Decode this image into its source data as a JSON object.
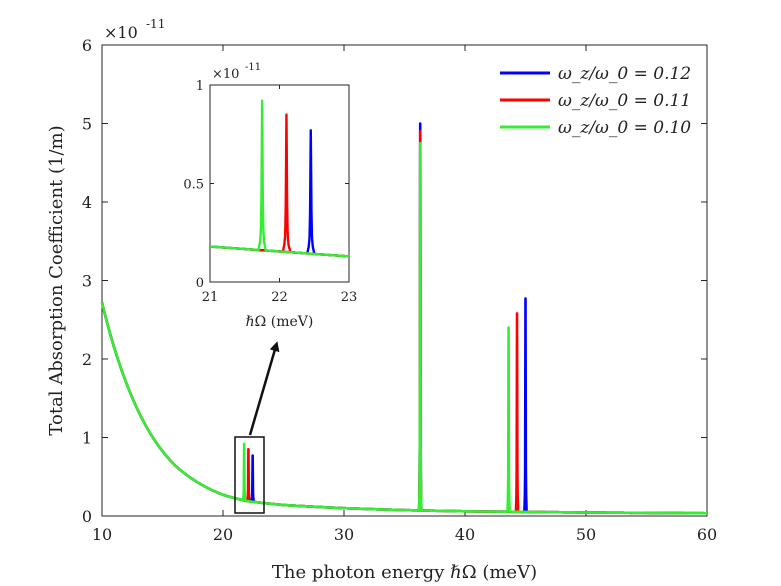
{
  "chart_data": [
    {
      "type": "line",
      "name": "main",
      "title": "",
      "xlabel": "The photon energy ℏΩ (meV)",
      "ylabel": "Total Absorption Coefficient (1/m)",
      "exponent_label": "×10",
      "exponent_power": "-11",
      "xlim": [
        10,
        60
      ],
      "ylim": [
        0,
        6
      ],
      "xticks": [
        10,
        20,
        30,
        40,
        50,
        60
      ],
      "yticks": [
        0,
        1,
        2,
        3,
        4,
        5,
        6
      ],
      "background_decay": {
        "description": "all series share the same decaying background",
        "points": [
          [
            10,
            2.72
          ],
          [
            12,
            1.7
          ],
          [
            14,
            1.05
          ],
          [
            16,
            0.65
          ],
          [
            18,
            0.42
          ],
          [
            20,
            0.27
          ],
          [
            22,
            0.19
          ],
          [
            25,
            0.14
          ],
          [
            30,
            0.1
          ],
          [
            35,
            0.075
          ],
          [
            40,
            0.06
          ],
          [
            50,
            0.045
          ],
          [
            60,
            0.035
          ]
        ]
      },
      "series": [
        {
          "name": "ω_z/ω_0 = 0.12",
          "color": "#0000ff",
          "peaks": [
            {
              "x": 22.45,
              "y": 0.77
            },
            {
              "x": 36.3,
              "y": 5.0
            },
            {
              "x": 45.0,
              "y": 2.77
            }
          ]
        },
        {
          "name": "ω_z/ω_0 = 0.11",
          "color": "#ff0000",
          "peaks": [
            {
              "x": 22.1,
              "y": 0.85
            },
            {
              "x": 36.3,
              "y": 4.9
            },
            {
              "x": 44.3,
              "y": 2.58
            }
          ]
        },
        {
          "name": "ω_z/ω_0 = 0.10",
          "color": "#33ee33",
          "peaks": [
            {
              "x": 21.75,
              "y": 0.92
            },
            {
              "x": 36.3,
              "y": 4.75
            },
            {
              "x": 43.6,
              "y": 2.4
            }
          ]
        }
      ],
      "legend": {
        "position": "top-right",
        "entries": [
          "ω_z/ω_0 = 0.12",
          "ω_z/ω_0 = 0.11",
          "ω_z/ω_0 = 0.10"
        ]
      },
      "annotation": "box around peaks near 21–23 meV with arrow pointing to inset"
    },
    {
      "type": "line",
      "name": "inset",
      "xlabel": "ℏΩ (meV)",
      "ylabel": "",
      "exponent_label": "×10",
      "exponent_power": "-11",
      "xlim": [
        21,
        23
      ],
      "ylim": [
        0,
        1
      ],
      "xticks": [
        21,
        22,
        23
      ],
      "yticks": [
        0,
        0.5,
        1
      ],
      "ytick_labels": [
        "0",
        "0.5",
        "1"
      ],
      "baseline": {
        "x_start": 21,
        "y_start": 0.18,
        "x_end": 23,
        "y_end": 0.13
      },
      "series": [
        {
          "name": "ω_z/ω_0 = 0.12",
          "color": "#0000ff",
          "peak": {
            "x": 22.45,
            "y": 0.77
          }
        },
        {
          "name": "ω_z/ω_0 = 0.11",
          "color": "#ff0000",
          "peak": {
            "x": 22.1,
            "y": 0.85
          }
        },
        {
          "name": "ω_z/ω_0 = 0.10",
          "color": "#33ee33",
          "peak": {
            "x": 21.75,
            "y": 0.92
          }
        }
      ]
    }
  ]
}
